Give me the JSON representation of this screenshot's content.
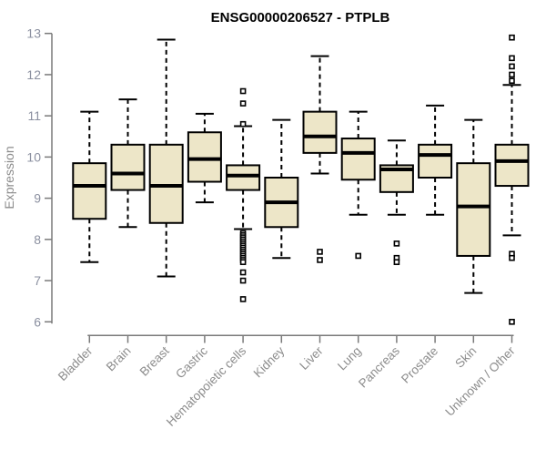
{
  "page": {
    "title": "ENSG00000206527 - PTPLB"
  },
  "colors": {
    "box_fill": "#EDE6C8",
    "box_stroke": "#000000",
    "median": "#000000",
    "whisker": "#000000",
    "outlier_stroke": "#000000",
    "axis_line": "#7a7a7a",
    "y_tick_label": "#8b90a0",
    "x_tick_label": "#8c8c8c",
    "title": "#000000",
    "background": "#ffffff"
  },
  "chart_data": {
    "type": "boxplot",
    "title": "ENSG00000206527 - PTPLB",
    "xlabel": "",
    "ylabel": "Expression",
    "ylim": [
      6,
      13
    ],
    "yticks": [
      6,
      7,
      8,
      9,
      10,
      11,
      12,
      13
    ],
    "grid": false,
    "legend": null,
    "categories": [
      "Bladder",
      "Brain",
      "Breast",
      "Gastric",
      "Hematopoietic cells",
      "Kidney",
      "Liver",
      "Lung",
      "Pancreas",
      "Prostate",
      "Skin",
      "Unknown / Other"
    ],
    "boxes": [
      {
        "name": "Bladder",
        "low": 7.45,
        "q1": 8.5,
        "median": 9.3,
        "q3": 9.85,
        "high": 11.1,
        "outliers": []
      },
      {
        "name": "Brain",
        "low": 8.3,
        "q1": 9.2,
        "median": 9.6,
        "q3": 10.3,
        "high": 11.4,
        "outliers": []
      },
      {
        "name": "Breast",
        "low": 7.1,
        "q1": 8.4,
        "median": 9.3,
        "q3": 10.3,
        "high": 12.85,
        "outliers": []
      },
      {
        "name": "Gastric",
        "low": 8.9,
        "q1": 9.4,
        "median": 9.95,
        "q3": 10.6,
        "high": 11.05,
        "outliers": []
      },
      {
        "name": "Hematopoietic cells",
        "low": 8.25,
        "q1": 9.2,
        "median": 9.55,
        "q3": 9.8,
        "high": 10.75,
        "outliers": [
          11.6,
          11.3,
          10.8,
          8.15,
          8.1,
          8.05,
          8.0,
          7.95,
          7.9,
          7.85,
          7.8,
          7.75,
          7.7,
          7.65,
          7.6,
          7.55,
          7.5,
          7.45,
          7.2,
          7.0,
          6.55
        ]
      },
      {
        "name": "Kidney",
        "low": 7.55,
        "q1": 8.3,
        "median": 8.9,
        "q3": 9.5,
        "high": 10.9,
        "outliers": []
      },
      {
        "name": "Liver",
        "low": 9.6,
        "q1": 10.1,
        "median": 10.5,
        "q3": 11.1,
        "high": 12.45,
        "outliers": [
          7.7,
          7.5
        ]
      },
      {
        "name": "Lung",
        "low": 8.6,
        "q1": 9.45,
        "median": 10.1,
        "q3": 10.45,
        "high": 11.1,
        "outliers": [
          7.6
        ]
      },
      {
        "name": "Pancreas",
        "low": 8.6,
        "q1": 9.15,
        "median": 9.7,
        "q3": 9.8,
        "high": 10.4,
        "outliers": [
          7.9,
          7.55,
          7.45
        ]
      },
      {
        "name": "Prostate",
        "low": 8.6,
        "q1": 9.5,
        "median": 10.05,
        "q3": 10.3,
        "high": 11.25,
        "outliers": []
      },
      {
        "name": "Skin",
        "low": 6.7,
        "q1": 7.6,
        "median": 8.8,
        "q3": 9.85,
        "high": 10.9,
        "outliers": []
      },
      {
        "name": "Unknown / Other",
        "low": 8.1,
        "q1": 9.3,
        "median": 9.9,
        "q3": 10.3,
        "high": 11.75,
        "outliers": [
          12.9,
          12.4,
          12.2,
          12.0,
          11.85,
          7.65,
          7.55,
          6.0
        ]
      }
    ]
  }
}
